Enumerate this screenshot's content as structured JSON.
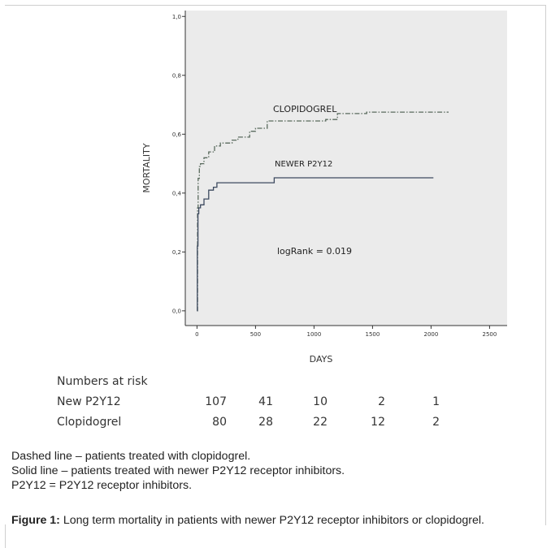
{
  "chart_data": {
    "type": "line",
    "xlabel": "DAYS",
    "ylabel": "MORTALITY",
    "xlim": [
      -100,
      2650
    ],
    "ylim": [
      -0.05,
      1.02
    ],
    "xticks": [
      "0",
      "500",
      "1000",
      "1500",
      "2000",
      "2500"
    ],
    "yticks": [
      "0,0",
      "0,2",
      "0,4",
      "0,6",
      "0,8",
      "1,0"
    ],
    "series": [
      {
        "name": "CLOPIDOGREL",
        "style": "dashed",
        "color": "#5a6b5e",
        "x": [
          0,
          5,
          10,
          20,
          30,
          60,
          100,
          150,
          200,
          300,
          350,
          450,
          500,
          600,
          900,
          1100,
          1200,
          1450,
          2150
        ],
        "y": [
          0.0,
          0.35,
          0.45,
          0.49,
          0.5,
          0.52,
          0.54,
          0.56,
          0.57,
          0.58,
          0.59,
          0.61,
          0.62,
          0.645,
          0.645,
          0.65,
          0.67,
          0.675,
          0.675
        ]
      },
      {
        "name": "NEWER P2Y12",
        "style": "solid",
        "color": "#3d4a5f",
        "x": [
          0,
          3,
          8,
          15,
          30,
          60,
          100,
          140,
          170,
          650,
          660,
          2020
        ],
        "y": [
          0.0,
          0.22,
          0.33,
          0.35,
          0.36,
          0.38,
          0.41,
          0.42,
          0.435,
          0.435,
          0.452,
          0.452
        ]
      }
    ],
    "annotations": [
      "CLOPIDOGREL",
      "NEWER P2Y12",
      "logRank = 0.019"
    ]
  },
  "risk_table": {
    "title": "Numbers at risk",
    "rows": [
      {
        "label": "New P2Y12",
        "values": [
          "107",
          "41",
          "10",
          "2",
          "1"
        ]
      },
      {
        "label": "Clopidogrel",
        "values": [
          "80",
          "28",
          "22",
          "12",
          "2"
        ]
      }
    ]
  },
  "notes": [
    "Dashed line – patients treated with clopidogrel.",
    "Solid line – patients treated with newer P2Y12 receptor inhibitors.",
    "P2Y12 = P2Y12 receptor inhibitors."
  ],
  "figure_caption": {
    "label": "Figure 1:",
    "text": " Long term mortality in patients with newer P2Y12 receptor inhibitors or clopidogrel."
  }
}
